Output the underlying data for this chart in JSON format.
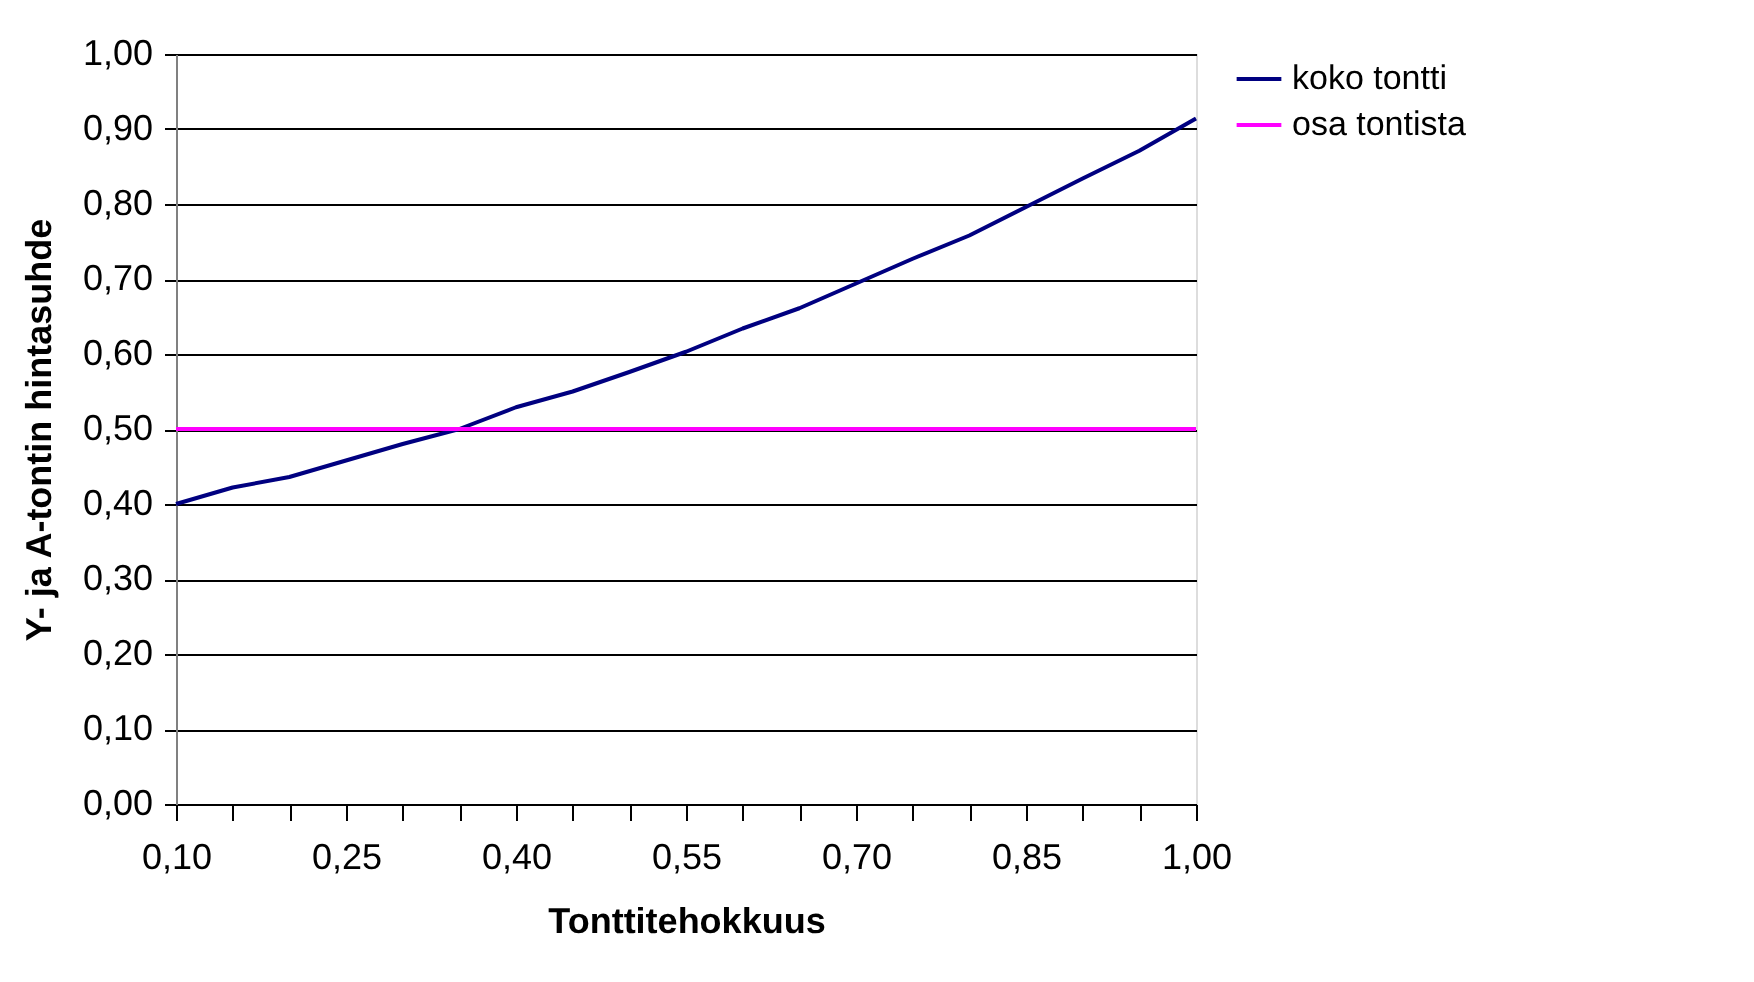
{
  "chart_data": {
    "type": "line",
    "xlabel": "Tonttitehokkuus",
    "ylabel": "Y- ja A-tontin hintasuhde",
    "x": [
      0.1,
      0.15,
      0.2,
      0.25,
      0.3,
      0.35,
      0.4,
      0.45,
      0.5,
      0.55,
      0.6,
      0.65,
      0.7,
      0.75,
      0.8,
      0.85,
      0.9,
      0.95,
      1.0
    ],
    "series": [
      {
        "name": "koko tontti",
        "color": "#000080",
        "values": [
          0.4,
          0.422,
          0.436,
          0.458,
          0.48,
          0.5,
          0.529,
          0.55,
          0.576,
          0.603,
          0.634,
          0.661,
          0.694,
          0.727,
          0.758,
          0.796,
          0.834,
          0.871,
          0.914
        ]
      },
      {
        "name": "osa tontista",
        "color": "#ff00ff",
        "values": [
          0.5,
          0.5,
          0.5,
          0.5,
          0.5,
          0.5,
          0.5,
          0.5,
          0.5,
          0.5,
          0.5,
          0.5,
          0.5,
          0.5,
          0.5,
          0.5,
          0.5,
          0.5,
          0.5
        ]
      }
    ],
    "xlim": [
      0.1,
      1.0
    ],
    "xticks": [
      {
        "value": 0.1,
        "label": "0,10"
      },
      {
        "value": 0.15,
        "label": null
      },
      {
        "value": 0.2,
        "label": null
      },
      {
        "value": 0.25,
        "label": "0,25"
      },
      {
        "value": 0.3,
        "label": null
      },
      {
        "value": 0.35,
        "label": null
      },
      {
        "value": 0.4,
        "label": "0,40"
      },
      {
        "value": 0.45,
        "label": null
      },
      {
        "value": 0.5,
        "label": null
      },
      {
        "value": 0.55,
        "label": "0,55"
      },
      {
        "value": 0.6,
        "label": null
      },
      {
        "value": 0.65,
        "label": null
      },
      {
        "value": 0.7,
        "label": "0,70"
      },
      {
        "value": 0.75,
        "label": null
      },
      {
        "value": 0.8,
        "label": null
      },
      {
        "value": 0.85,
        "label": "0,85"
      },
      {
        "value": 0.9,
        "label": null
      },
      {
        "value": 0.95,
        "label": null
      },
      {
        "value": 1.0,
        "label": "1,00"
      }
    ],
    "ylim": [
      0,
      1.0
    ],
    "yticks": [
      {
        "value": 0,
        "label": "0,00"
      },
      {
        "value": 0.1,
        "label": "0,10"
      },
      {
        "value": 0.2,
        "label": "0,20"
      },
      {
        "value": 0.3,
        "label": "0,30"
      },
      {
        "value": 0.4,
        "label": "0,40"
      },
      {
        "value": 0.5,
        "label": "0,50"
      },
      {
        "value": 0.6,
        "label": "0,60"
      },
      {
        "value": 0.7,
        "label": "0,70"
      },
      {
        "value": 0.8,
        "label": "0,80"
      },
      {
        "value": 0.9,
        "label": "0,90"
      },
      {
        "value": 1.0,
        "label": "1,00"
      }
    ],
    "grid": "y",
    "legend": "top right",
    "marker": "none",
    "line_style": "solid"
  }
}
